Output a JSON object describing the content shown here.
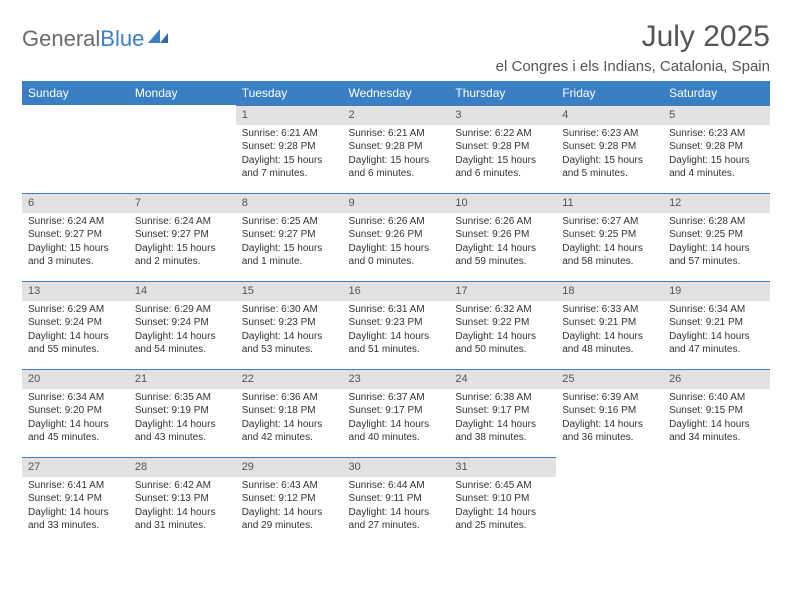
{
  "logo": {
    "part1": "General",
    "part2": "Blue"
  },
  "title": "July 2025",
  "location": "el Congres i els Indians, Catalonia, Spain",
  "colors": {
    "header_bg": "#3a7fc4",
    "daynum_bg": "#e2e2e2",
    "text": "#333333",
    "logo_gray": "#6b6b6b"
  },
  "weekdays": [
    "Sunday",
    "Monday",
    "Tuesday",
    "Wednesday",
    "Thursday",
    "Friday",
    "Saturday"
  ],
  "weeks": [
    [
      null,
      null,
      {
        "n": "1",
        "sunrise": "6:21 AM",
        "sunset": "9:28 PM",
        "daylight": "15 hours and 7 minutes."
      },
      {
        "n": "2",
        "sunrise": "6:21 AM",
        "sunset": "9:28 PM",
        "daylight": "15 hours and 6 minutes."
      },
      {
        "n": "3",
        "sunrise": "6:22 AM",
        "sunset": "9:28 PM",
        "daylight": "15 hours and 6 minutes."
      },
      {
        "n": "4",
        "sunrise": "6:23 AM",
        "sunset": "9:28 PM",
        "daylight": "15 hours and 5 minutes."
      },
      {
        "n": "5",
        "sunrise": "6:23 AM",
        "sunset": "9:28 PM",
        "daylight": "15 hours and 4 minutes."
      }
    ],
    [
      {
        "n": "6",
        "sunrise": "6:24 AM",
        "sunset": "9:27 PM",
        "daylight": "15 hours and 3 minutes."
      },
      {
        "n": "7",
        "sunrise": "6:24 AM",
        "sunset": "9:27 PM",
        "daylight": "15 hours and 2 minutes."
      },
      {
        "n": "8",
        "sunrise": "6:25 AM",
        "sunset": "9:27 PM",
        "daylight": "15 hours and 1 minute."
      },
      {
        "n": "9",
        "sunrise": "6:26 AM",
        "sunset": "9:26 PM",
        "daylight": "15 hours and 0 minutes."
      },
      {
        "n": "10",
        "sunrise": "6:26 AM",
        "sunset": "9:26 PM",
        "daylight": "14 hours and 59 minutes."
      },
      {
        "n": "11",
        "sunrise": "6:27 AM",
        "sunset": "9:25 PM",
        "daylight": "14 hours and 58 minutes."
      },
      {
        "n": "12",
        "sunrise": "6:28 AM",
        "sunset": "9:25 PM",
        "daylight": "14 hours and 57 minutes."
      }
    ],
    [
      {
        "n": "13",
        "sunrise": "6:29 AM",
        "sunset": "9:24 PM",
        "daylight": "14 hours and 55 minutes."
      },
      {
        "n": "14",
        "sunrise": "6:29 AM",
        "sunset": "9:24 PM",
        "daylight": "14 hours and 54 minutes."
      },
      {
        "n": "15",
        "sunrise": "6:30 AM",
        "sunset": "9:23 PM",
        "daylight": "14 hours and 53 minutes."
      },
      {
        "n": "16",
        "sunrise": "6:31 AM",
        "sunset": "9:23 PM",
        "daylight": "14 hours and 51 minutes."
      },
      {
        "n": "17",
        "sunrise": "6:32 AM",
        "sunset": "9:22 PM",
        "daylight": "14 hours and 50 minutes."
      },
      {
        "n": "18",
        "sunrise": "6:33 AM",
        "sunset": "9:21 PM",
        "daylight": "14 hours and 48 minutes."
      },
      {
        "n": "19",
        "sunrise": "6:34 AM",
        "sunset": "9:21 PM",
        "daylight": "14 hours and 47 minutes."
      }
    ],
    [
      {
        "n": "20",
        "sunrise": "6:34 AM",
        "sunset": "9:20 PM",
        "daylight": "14 hours and 45 minutes."
      },
      {
        "n": "21",
        "sunrise": "6:35 AM",
        "sunset": "9:19 PM",
        "daylight": "14 hours and 43 minutes."
      },
      {
        "n": "22",
        "sunrise": "6:36 AM",
        "sunset": "9:18 PM",
        "daylight": "14 hours and 42 minutes."
      },
      {
        "n": "23",
        "sunrise": "6:37 AM",
        "sunset": "9:17 PM",
        "daylight": "14 hours and 40 minutes."
      },
      {
        "n": "24",
        "sunrise": "6:38 AM",
        "sunset": "9:17 PM",
        "daylight": "14 hours and 38 minutes."
      },
      {
        "n": "25",
        "sunrise": "6:39 AM",
        "sunset": "9:16 PM",
        "daylight": "14 hours and 36 minutes."
      },
      {
        "n": "26",
        "sunrise": "6:40 AM",
        "sunset": "9:15 PM",
        "daylight": "14 hours and 34 minutes."
      }
    ],
    [
      {
        "n": "27",
        "sunrise": "6:41 AM",
        "sunset": "9:14 PM",
        "daylight": "14 hours and 33 minutes."
      },
      {
        "n": "28",
        "sunrise": "6:42 AM",
        "sunset": "9:13 PM",
        "daylight": "14 hours and 31 minutes."
      },
      {
        "n": "29",
        "sunrise": "6:43 AM",
        "sunset": "9:12 PM",
        "daylight": "14 hours and 29 minutes."
      },
      {
        "n": "30",
        "sunrise": "6:44 AM",
        "sunset": "9:11 PM",
        "daylight": "14 hours and 27 minutes."
      },
      {
        "n": "31",
        "sunrise": "6:45 AM",
        "sunset": "9:10 PM",
        "daylight": "14 hours and 25 minutes."
      },
      null,
      null
    ]
  ]
}
